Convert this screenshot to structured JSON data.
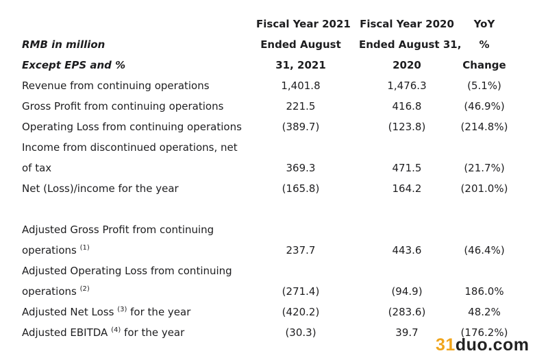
{
  "header": {
    "col1": [
      "Fiscal Year 2021",
      "Ended August",
      "31, 2021"
    ],
    "col2": [
      "Fiscal Year 2020",
      "Ended August 31,",
      "2020"
    ],
    "col3": [
      "YoY",
      "%",
      "Change"
    ],
    "label1": "RMB in million",
    "label2": "Except EPS and %"
  },
  "rows": [
    {
      "label": "Revenue from continuing operations",
      "fy2021": "1,401.8",
      "fy2020": "1,476.3",
      "yoy": "(5.1%)"
    },
    {
      "label": "Gross Profit from continuing operations",
      "fy2021": "221.5",
      "fy2020": "416.8",
      "yoy": "(46.9%)"
    },
    {
      "label": "Operating Loss from continuing operations",
      "fy2021": "(389.7)",
      "fy2020": "(123.8)",
      "yoy": "(214.8%)"
    },
    {
      "label_line1": "Income from discontinued operations, net",
      "label_line2": "of tax",
      "fy2021": "369.3",
      "fy2020": "471.5",
      "yoy": "(21.7%)"
    },
    {
      "label": "Net (Loss)/income for the year",
      "fy2021": "(165.8)",
      "fy2020": "164.2",
      "yoy": "(201.0%)"
    },
    {
      "label_line1": "Adjusted Gross Profit from continuing",
      "label_line2": "operations",
      "note": "(1)",
      "fy2021": "237.7",
      "fy2020": "443.6",
      "yoy": "(46.4%)"
    },
    {
      "label_line1": "Adjusted Operating Loss from continuing",
      "label_line2": "operations",
      "note": "(2)",
      "fy2021": "(271.4)",
      "fy2020": "(94.9)",
      "yoy": "186.0%"
    },
    {
      "label_pre": "Adjusted Net Loss",
      "note": "(3)",
      "label_post": "for the year",
      "fy2021": "(420.2)",
      "fy2020": "(283.6)",
      "yoy": "48.2%"
    },
    {
      "label_pre": "Adjusted EBITDA",
      "note": "(4)",
      "label_post": "for the year",
      "fy2021": "(30.3)",
      "fy2020": "39.7",
      "yoy": "(176.2%)"
    }
  ],
  "watermark": {
    "part1": "31",
    "part2": "duo.com"
  }
}
